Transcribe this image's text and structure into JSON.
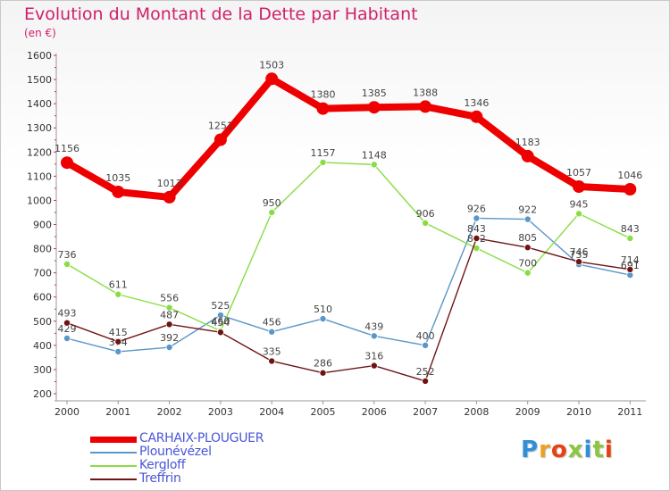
{
  "title": "Evolution du Montant de la Dette par Habitant",
  "unit": "(en €)",
  "brand": "Proxiti",
  "chart_data": {
    "type": "line",
    "x": [
      "2000",
      "2001",
      "2002",
      "2003",
      "2004",
      "2005",
      "2006",
      "2007",
      "2008",
      "2009",
      "2010",
      "2011"
    ],
    "ylim": [
      200,
      1600
    ],
    "yticks": [
      200,
      300,
      400,
      500,
      600,
      700,
      800,
      900,
      1000,
      1100,
      1200,
      1300,
      1400,
      1500,
      1600
    ],
    "grid": false,
    "legend_position": "bottom-left",
    "series": [
      {
        "name": "CARHAIX-PLOUGUER",
        "color": "#ee0000",
        "emphasis": true,
        "values": [
          1156,
          1035,
          1013,
          1251,
          1503,
          1380,
          1385,
          1388,
          1346,
          1183,
          1057,
          1046
        ],
        "labels": [
          "1156",
          "1035",
          "1013",
          "1251",
          "1503",
          "1380",
          "1385",
          "1388",
          "1346",
          "1183",
          "1057",
          "1046"
        ]
      },
      {
        "name": "Plounévézel",
        "color": "#5a96c8",
        "values": [
          429,
          374,
          392,
          525,
          456,
          510,
          439,
          400,
          926,
          922,
          735,
          691
        ],
        "labels": [
          "429",
          "374",
          "392",
          "525",
          "456",
          "510",
          "439",
          "400",
          "926",
          "922",
          "735",
          "691"
        ]
      },
      {
        "name": "Kergloff",
        "color": "#88dd44",
        "values": [
          736,
          611,
          556,
          460,
          950,
          1157,
          1148,
          906,
          802,
          700,
          945,
          843
        ],
        "labels": [
          "736",
          "611",
          "556",
          "460",
          "950",
          "1157",
          "1148",
          "906",
          "802",
          "700",
          "945",
          "843"
        ]
      },
      {
        "name": "Treffrin",
        "color": "#6e1414",
        "values": [
          493,
          415,
          487,
          454,
          335,
          286,
          316,
          252,
          843,
          805,
          746,
          714
        ],
        "labels": [
          "493",
          "415",
          "487",
          "454",
          "335",
          "286",
          "316",
          "252",
          "843",
          "805",
          "746",
          "714"
        ]
      }
    ]
  }
}
